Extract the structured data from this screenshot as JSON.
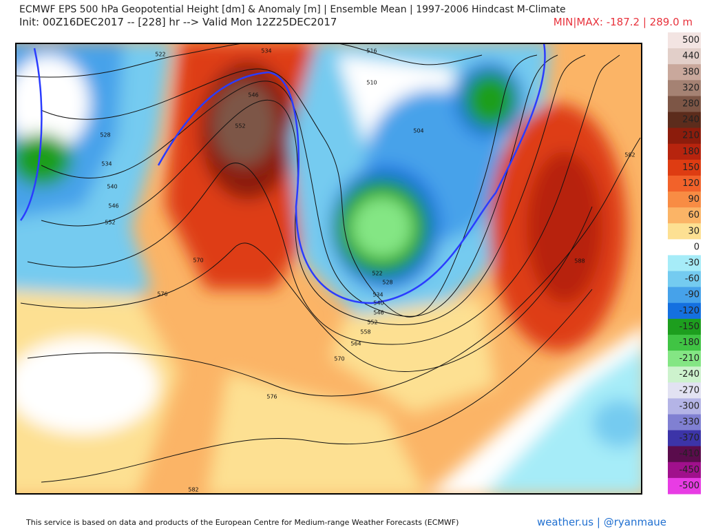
{
  "header": {
    "title": "ECMWF EPS 500 hPa Geopotential Height [dm] & Anomaly [m] | Ensemble Mean | 1997-2006 Hindcast M-Climate",
    "subtitle": "Init: 00Z16DEC2017 -- [228] hr --> Valid Mon 12Z25DEC2017",
    "min_max": "MIN|MAX: -187.2 | 289.0 m"
  },
  "colorbar": {
    "levels": [
      {
        "value": 500,
        "color": "#f3e4e2"
      },
      {
        "value": 440,
        "color": "#e2cfc9"
      },
      {
        "value": 380,
        "color": "#c9a89c"
      },
      {
        "value": 320,
        "color": "#a58273"
      },
      {
        "value": 280,
        "color": "#7d5646"
      },
      {
        "value": 240,
        "color": "#5c2c1c"
      },
      {
        "value": 210,
        "color": "#8c1c0c"
      },
      {
        "value": 180,
        "color": "#b7240e"
      },
      {
        "value": 150,
        "color": "#de3c12"
      },
      {
        "value": 120,
        "color": "#f2622a"
      },
      {
        "value": 90,
        "color": "#f88c44"
      },
      {
        "value": 60,
        "color": "#fbb466"
      },
      {
        "value": 30,
        "color": "#fde092"
      },
      {
        "value": 0,
        "color": "#ffffff"
      },
      {
        "value": -30,
        "color": "#a6ecf8"
      },
      {
        "value": -60,
        "color": "#74cbf0"
      },
      {
        "value": -90,
        "color": "#46a2ea"
      },
      {
        "value": -120,
        "color": "#1470e0"
      },
      {
        "value": -150,
        "color": "#1d9e1e"
      },
      {
        "value": -180,
        "color": "#40c444"
      },
      {
        "value": -210,
        "color": "#84e684"
      },
      {
        "value": -240,
        "color": "#cdf2cd"
      },
      {
        "value": -270,
        "color": "#e2e2f2"
      },
      {
        "value": -300,
        "color": "#b4b4e6"
      },
      {
        "value": -330,
        "color": "#8080d2"
      },
      {
        "value": -370,
        "color": "#3c34a8"
      },
      {
        "value": -410,
        "color": "#5a0c4c"
      },
      {
        "value": -450,
        "color": "#a0108c"
      },
      {
        "value": -500,
        "color": "#e83ce4"
      }
    ]
  },
  "contour_labels": [
    "522",
    "534",
    "516",
    "510",
    "546",
    "552",
    "528",
    "534",
    "540",
    "546",
    "552",
    "504",
    "582",
    "570",
    "576",
    "588",
    "522",
    "528",
    "534",
    "540",
    "546",
    "552",
    "558",
    "564",
    "570",
    "576",
    "582"
  ],
  "footer": {
    "credit": "This service is based on data and products of the European Centre for Medium-range Weather Forecasts (ECMWF)",
    "brand": "weather.us | @ryanmaue"
  }
}
